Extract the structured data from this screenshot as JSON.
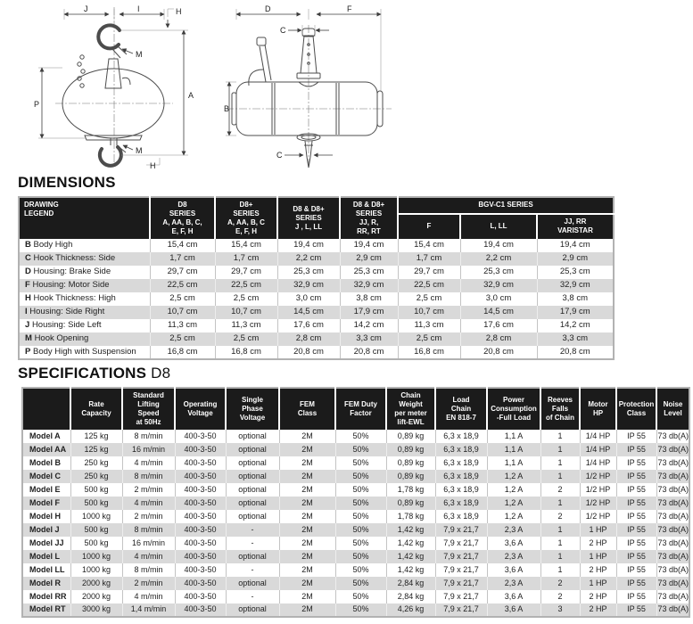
{
  "colors": {
    "header_bg": "#1b1b1b",
    "row_stripe": "#d9d9d9"
  },
  "drawings": {
    "front_view": {
      "dim_labels": {
        "j": "J",
        "i": "I",
        "h_top": "H",
        "m_top": "M",
        "a": "A",
        "p": "P",
        "m_bottom": "M",
        "h_bottom": "H"
      }
    },
    "side_view": {
      "dim_labels": {
        "d": "D",
        "c_top": "C",
        "f": "F",
        "b": "B",
        "c_bottom": "C"
      }
    }
  },
  "dimensions": {
    "title": "DIMENSIONS",
    "legend_header": "DRAWING\nLEGEND",
    "series_headers": [
      "D8\nSERIES\nA, AA, B, C,\nE, F, H",
      "D8+\nSERIES\nA, AA, B, C\nE, F, H",
      "D8 & D8+\nSERIES\nJ , L, LL",
      "D8 & D8+\nSERIES\nJJ, R,\nRR, RT"
    ],
    "group_header": "BGV-C1 SERIES",
    "group_subheaders": [
      "F",
      "L, LL",
      "JJ, RR\nVARISTAR"
    ],
    "rows": [
      {
        "key": "B",
        "label": "Body High",
        "values": [
          "15,4 cm",
          "15,4 cm",
          "19,4 cm",
          "19,4 cm",
          "15,4 cm",
          "19,4 cm",
          "19,4 cm"
        ]
      },
      {
        "key": "C",
        "label": "Hook Thickness: Side",
        "values": [
          "1,7 cm",
          "1,7 cm",
          "2,2 cm",
          "2,9 cm",
          "1,7 cm",
          "2,2 cm",
          "2,9 cm"
        ]
      },
      {
        "key": "D",
        "label": "Housing: Brake Side",
        "values": [
          "29,7 cm",
          "29,7 cm",
          "25,3 cm",
          "25,3 cm",
          "29,7 cm",
          "25,3 cm",
          "25,3 cm"
        ]
      },
      {
        "key": "F",
        "label": "Housing: Motor Side",
        "values": [
          "22,5 cm",
          "22,5 cm",
          "32,9 cm",
          "32,9 cm",
          "22,5 cm",
          "32,9 cm",
          "32,9 cm"
        ]
      },
      {
        "key": "H",
        "label": "Hook Thickness: High",
        "values": [
          "2,5 cm",
          "2,5 cm",
          "3,0 cm",
          "3,8 cm",
          "2,5 cm",
          "3,0 cm",
          "3,8 cm"
        ]
      },
      {
        "key": "I",
        "label": "Housing: Side Right",
        "values": [
          "10,7 cm",
          "10,7 cm",
          "14,5 cm",
          "17,9 cm",
          "10,7 cm",
          "14,5 cm",
          "17,9 cm"
        ]
      },
      {
        "key": "J",
        "label": "Housing: Side Left",
        "values": [
          "11,3 cm",
          "11,3 cm",
          "17,6 cm",
          "14,2 cm",
          "11,3 cm",
          "17,6 cm",
          "14,2 cm"
        ]
      },
      {
        "key": "M",
        "label": "Hook Opening",
        "values": [
          "2,5 cm",
          "2,5 cm",
          "2,8 cm",
          "3,3 cm",
          "2,5 cm",
          "2,8 cm",
          "3,3 cm"
        ]
      },
      {
        "key": "P",
        "label": "Body High with Suspension",
        "values": [
          "16,8 cm",
          "16,8 cm",
          "20,8 cm",
          "20,8 cm",
          "16,8 cm",
          "20,8 cm",
          "20,8 cm"
        ]
      }
    ]
  },
  "specifications": {
    "title": "SPECIFICATIONS",
    "model_series": "D8",
    "column_headers": [
      "",
      "Rate\nCapacity",
      "Standard\nLifting\nSpeed\nat 50Hz",
      "Operating\nVoltage",
      "Single\nPhase\nVoltage",
      "FEM\nClass",
      "FEM Duty\nFactor",
      "Chain\nWeight\nper meter\nlift-EWL",
      "Load\nChain\nEN 818-7",
      "Power\nConsumption\n-Full Load",
      "Reeves\nFalls\nof Chain",
      "Motor\nHP",
      "Protection\nClass",
      "Noise\nLevel"
    ],
    "rows": [
      {
        "model": "Model A",
        "values": [
          "125 kg",
          "8 m/min",
          "400-3-50",
          "optional",
          "2M",
          "50%",
          "0,89 kg",
          "6,3 x 18,9",
          "1,1 A",
          "1",
          "1/4 HP",
          "IP 55",
          "73 db(A)"
        ]
      },
      {
        "model": "Model AA",
        "values": [
          "125 kg",
          "16 m/min",
          "400-3-50",
          "optional",
          "2M",
          "50%",
          "0,89 kg",
          "6,3 x 18,9",
          "1,1 A",
          "1",
          "1/4 HP",
          "IP 55",
          "73 db(A)"
        ]
      },
      {
        "model": "Model B",
        "values": [
          "250 kg",
          "4 m/min",
          "400-3-50",
          "optional",
          "2M",
          "50%",
          "0,89 kg",
          "6,3 x 18,9",
          "1,1 A",
          "1",
          "1/4 HP",
          "IP 55",
          "73 db(A)"
        ]
      },
      {
        "model": "Model C",
        "values": [
          "250 kg",
          "8 m/min",
          "400-3-50",
          "optional",
          "2M",
          "50%",
          "0,89 kg",
          "6,3 x 18,9",
          "1,2 A",
          "1",
          "1/2 HP",
          "IP 55",
          "73 db(A)"
        ]
      },
      {
        "model": "Model E",
        "values": [
          "500 kg",
          "2 m/min",
          "400-3-50",
          "optional",
          "2M",
          "50%",
          "1,78 kg",
          "6,3 x 18,9",
          "1,2 A",
          "2",
          "1/2 HP",
          "IP 55",
          "73 db(A)"
        ]
      },
      {
        "model": "Model F",
        "values": [
          "500 kg",
          "4 m/min",
          "400-3-50",
          "optional",
          "2M",
          "50%",
          "0,89 kg",
          "6,3 x 18,9",
          "1,2 A",
          "1",
          "1/2 HP",
          "IP 55",
          "73 db(A)"
        ]
      },
      {
        "model": "Model H",
        "values": [
          "1000 kg",
          "2 m/min",
          "400-3-50",
          "optional",
          "2M",
          "50%",
          "1,78 kg",
          "6,3 x 18,9",
          "1,2 A",
          "2",
          "1/2 HP",
          "IP 55",
          "73 db(A)"
        ]
      },
      {
        "model": "Model J",
        "values": [
          "500 kg",
          "8 m/min",
          "400-3-50",
          "-",
          "2M",
          "50%",
          "1,42 kg",
          "7,9 x 21,7",
          "2,3 A",
          "1",
          "1 HP",
          "IP 55",
          "73 db(A)"
        ]
      },
      {
        "model": "Model JJ",
        "values": [
          "500 kg",
          "16 m/min",
          "400-3-50",
          "-",
          "2M",
          "50%",
          "1,42 kg",
          "7,9 x 21,7",
          "3,6 A",
          "1",
          "2 HP",
          "IP 55",
          "73 db(A)"
        ]
      },
      {
        "model": "Model L",
        "values": [
          "1000 kg",
          "4 m/min",
          "400-3-50",
          "optional",
          "2M",
          "50%",
          "1,42 kg",
          "7,9 x 21,7",
          "2,3 A",
          "1",
          "1 HP",
          "IP 55",
          "73 db(A)"
        ]
      },
      {
        "model": "Model LL",
        "values": [
          "1000 kg",
          "8 m/min",
          "400-3-50",
          "-",
          "2M",
          "50%",
          "1,42 kg",
          "7,9 x 21,7",
          "3,6 A",
          "1",
          "2 HP",
          "IP 55",
          "73 db(A)"
        ]
      },
      {
        "model": "Model R",
        "values": [
          "2000 kg",
          "2 m/min",
          "400-3-50",
          "optional",
          "2M",
          "50%",
          "2,84 kg",
          "7,9 x 21,7",
          "2,3 A",
          "2",
          "1 HP",
          "IP 55",
          "73 db(A)"
        ]
      },
      {
        "model": "Model RR",
        "values": [
          "2000 kg",
          "4 m/min",
          "400-3-50",
          "-",
          "2M",
          "50%",
          "2,84 kg",
          "7,9 x 21,7",
          "3,6 A",
          "2",
          "2 HP",
          "IP 55",
          "73 db(A)"
        ]
      },
      {
        "model": "Model RT",
        "values": [
          "3000 kg",
          "1,4 m/min",
          "400-3-50",
          "optional",
          "2M",
          "50%",
          "4,26 kg",
          "7,9 x 21,7",
          "3,6 A",
          "3",
          "2 HP",
          "IP 55",
          "73 db(A)"
        ]
      }
    ]
  }
}
